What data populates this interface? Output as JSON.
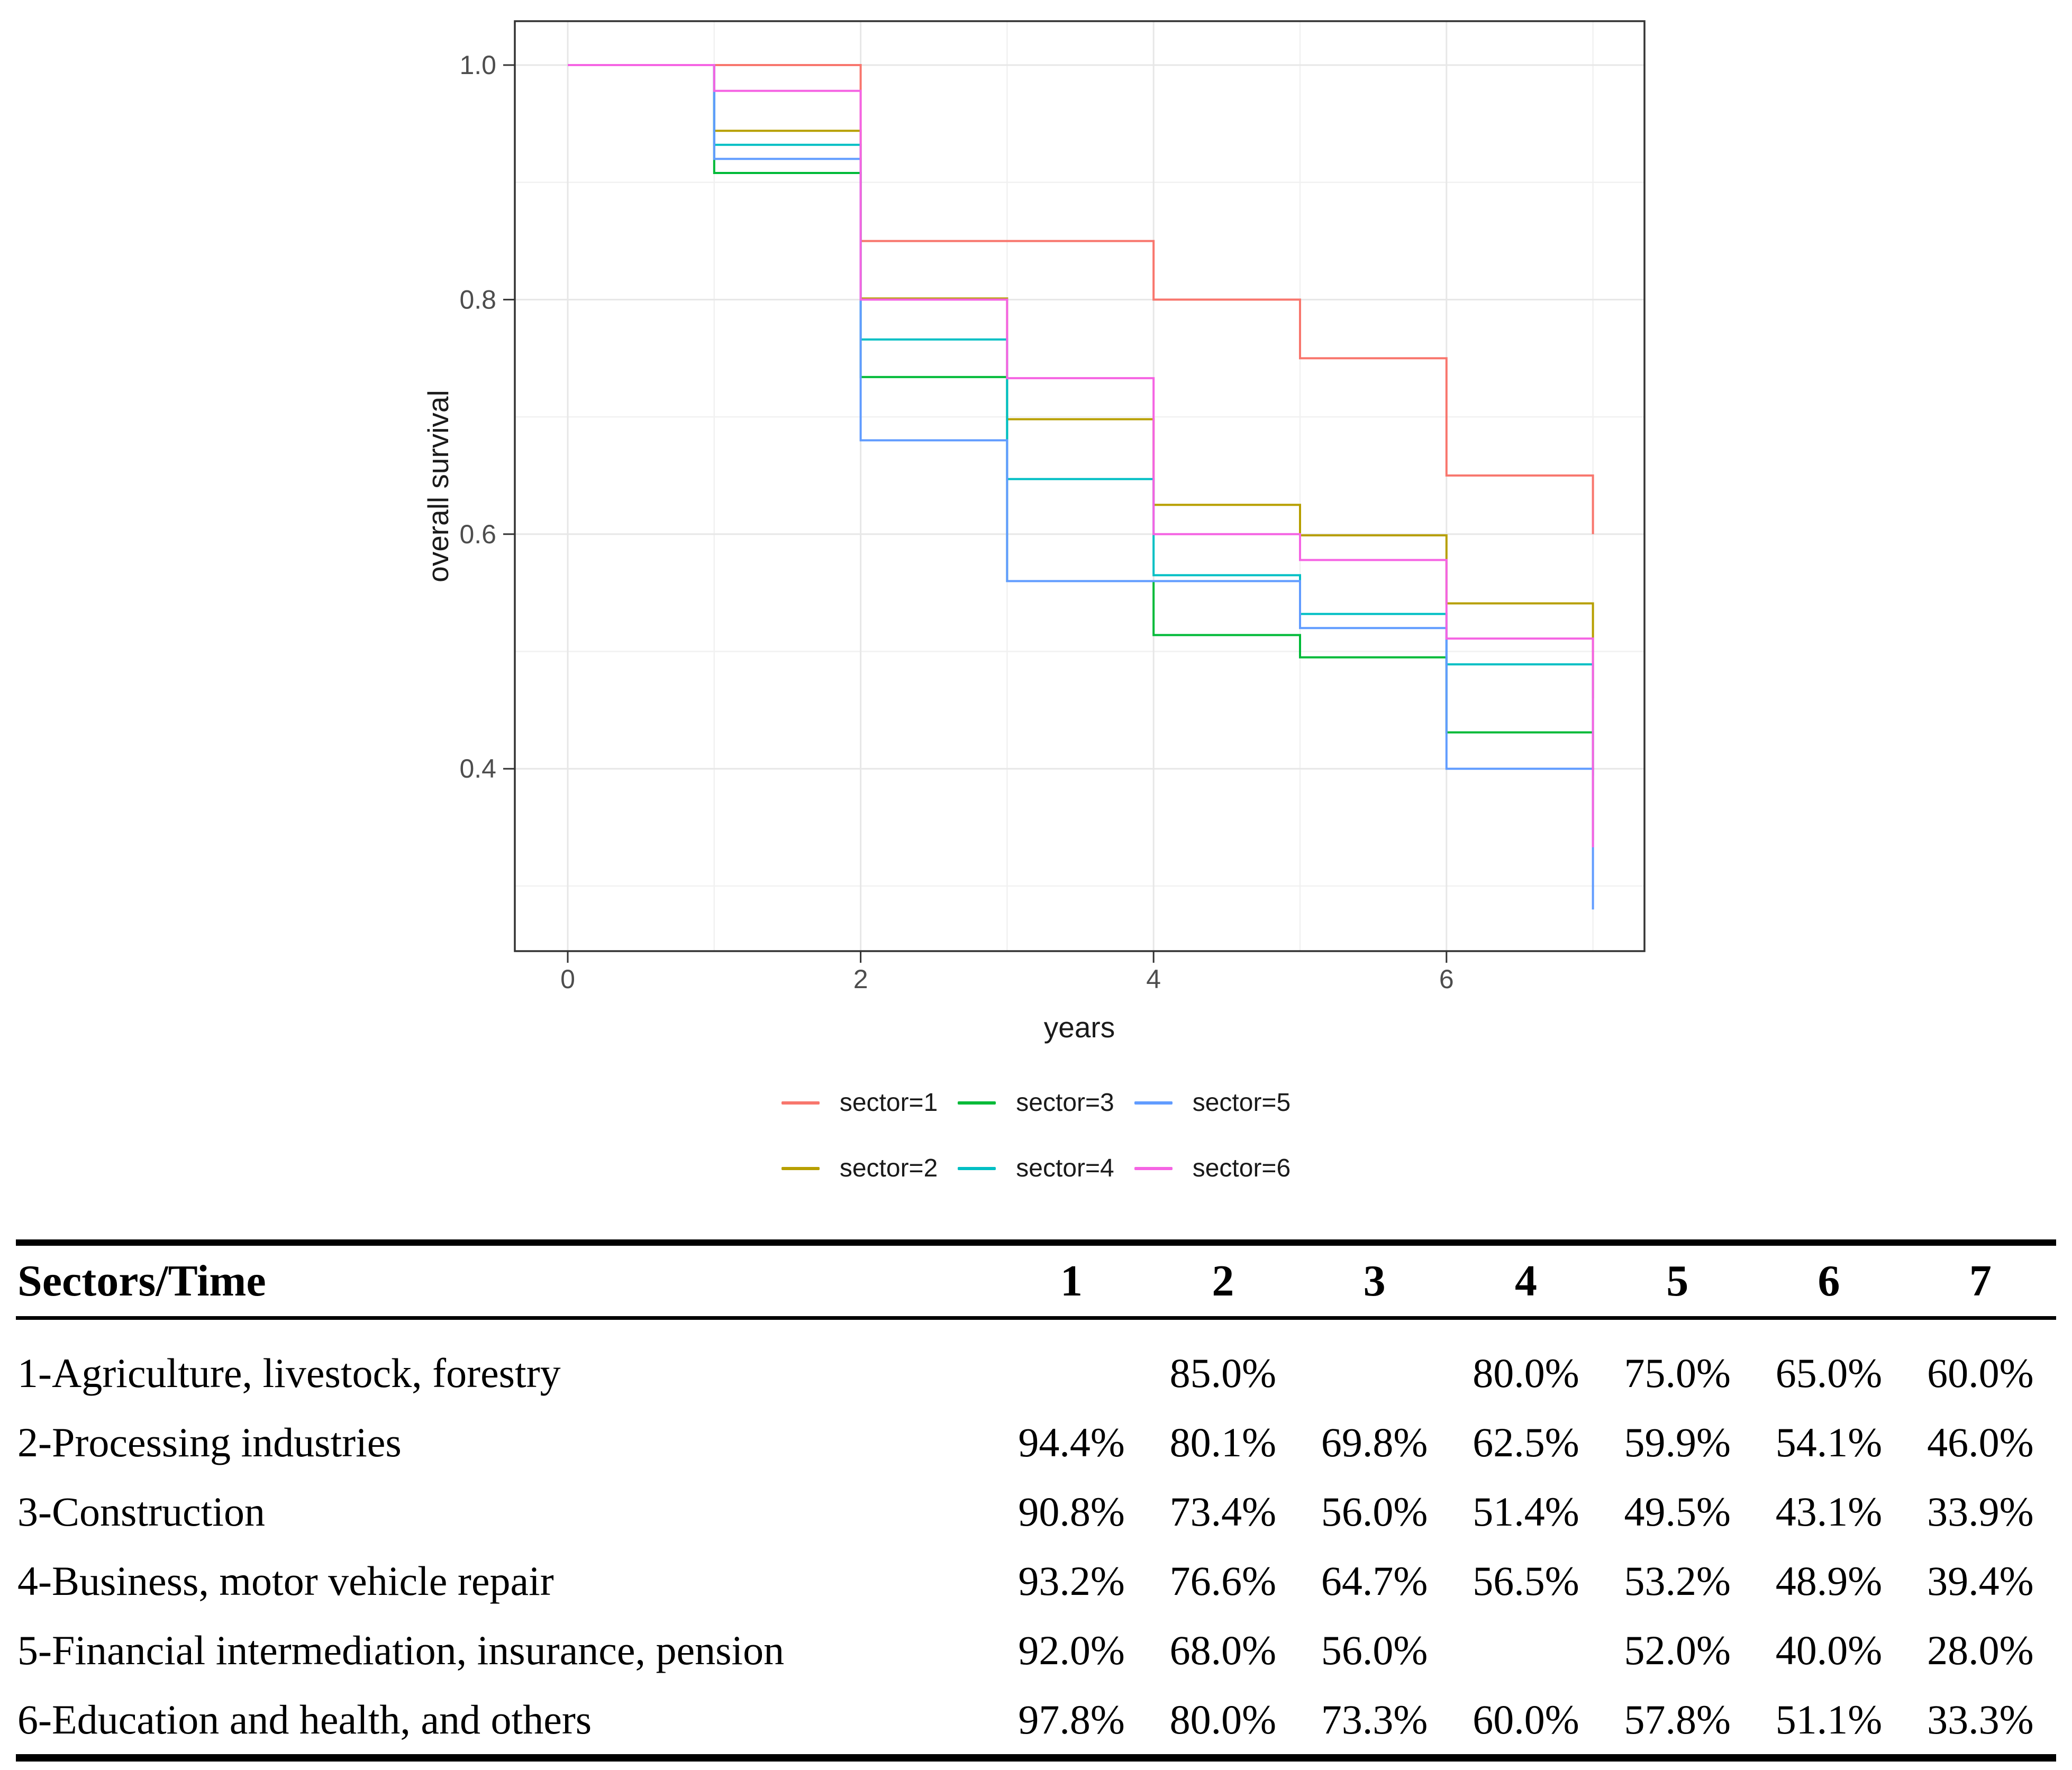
{
  "chart_data": {
    "type": "line",
    "subtype": "step-survival",
    "title": "",
    "xlabel": "years",
    "ylabel": "overall survival",
    "x": [
      0,
      1,
      2,
      3,
      4,
      5,
      6,
      7
    ],
    "series": [
      {
        "name": "sector=1",
        "color": "#F8766D",
        "values": [
          1.0,
          1.0,
          0.85,
          0.85,
          0.8,
          0.75,
          0.65,
          0.6
        ]
      },
      {
        "name": "sector=2",
        "color": "#B79F00",
        "values": [
          1.0,
          0.944,
          0.801,
          0.698,
          0.625,
          0.599,
          0.541,
          0.46
        ]
      },
      {
        "name": "sector=3",
        "color": "#00BA38",
        "values": [
          1.0,
          0.908,
          0.734,
          0.56,
          0.514,
          0.495,
          0.431,
          0.339
        ]
      },
      {
        "name": "sector=4",
        "color": "#00BFC4",
        "values": [
          1.0,
          0.932,
          0.766,
          0.647,
          0.565,
          0.532,
          0.489,
          0.394
        ]
      },
      {
        "name": "sector=5",
        "color": "#619CFF",
        "values": [
          1.0,
          0.92,
          0.68,
          0.56,
          0.56,
          0.52,
          0.4,
          0.28
        ]
      },
      {
        "name": "sector=6",
        "color": "#F564E3",
        "values": [
          1.0,
          0.978,
          0.8,
          0.733,
          0.6,
          0.578,
          0.511,
          0.333
        ]
      }
    ],
    "x_major_ticks": [
      0,
      2,
      4,
      6
    ],
    "x_minor_ticks": [
      1,
      3,
      5,
      7
    ],
    "y_major_ticks": [
      1.0,
      0.8,
      0.6,
      0.4
    ],
    "y_minor_ticks": [
      0.9,
      0.7,
      0.5,
      0.3
    ],
    "x_tick_labels": [
      "0",
      "2",
      "4",
      "6"
    ],
    "y_tick_labels": [
      "1.0",
      "0.8",
      "0.6",
      "0.4"
    ],
    "xlim": [
      -0.35,
      7.35
    ],
    "ylim": [
      0.244,
      1.036
    ],
    "grid": true,
    "legend_position": "bottom"
  },
  "legend": {
    "rows": [
      [
        {
          "label": "sector=1",
          "color": "#F8766D"
        },
        {
          "label": "sector=3",
          "color": "#00BA38"
        },
        {
          "label": "sector=5",
          "color": "#619CFF"
        }
      ],
      [
        {
          "label": "sector=2",
          "color": "#B79F00"
        },
        {
          "label": "sector=4",
          "color": "#00BFC4"
        },
        {
          "label": "sector=6",
          "color": "#F564E3"
        }
      ]
    ]
  },
  "table": {
    "header": [
      "Sectors/Time",
      "1",
      "2",
      "3",
      "4",
      "5",
      "6",
      "7"
    ],
    "rows": [
      {
        "label": "1-Agriculture, livestock, forestry",
        "values": [
          "",
          "85.0%",
          "",
          "80.0%",
          "75.0%",
          "65.0%",
          "60.0%"
        ]
      },
      {
        "label": "2-Processing industries",
        "values": [
          "94.4%",
          "80.1%",
          "69.8%",
          "62.5%",
          "59.9%",
          "54.1%",
          "46.0%"
        ]
      },
      {
        "label": "3-Construction",
        "values": [
          "90.8%",
          "73.4%",
          "56.0%",
          "51.4%",
          "49.5%",
          "43.1%",
          "33.9%"
        ]
      },
      {
        "label": "4-Business, motor vehicle repair",
        "values": [
          "93.2%",
          "76.6%",
          "64.7%",
          "56.5%",
          "53.2%",
          "48.9%",
          "39.4%"
        ]
      },
      {
        "label": "5-Financial intermediation, insurance, pension",
        "values": [
          "92.0%",
          "68.0%",
          "56.0%",
          "",
          "52.0%",
          "40.0%",
          "28.0%"
        ]
      },
      {
        "label": "6-Education and health, and others",
        "values": [
          "97.8%",
          "80.0%",
          "73.3%",
          "60.0%",
          "57.8%",
          "51.1%",
          "33.3%"
        ]
      }
    ]
  },
  "style": {
    "panel_border_color": "#333333",
    "grid_major_color": "#e7e7e7",
    "grid_minor_color": "#f1f1f1",
    "tick_color": "#333333",
    "tick_label_color": "#4d4d4d",
    "axis_title_color": "#1a1a1a"
  }
}
